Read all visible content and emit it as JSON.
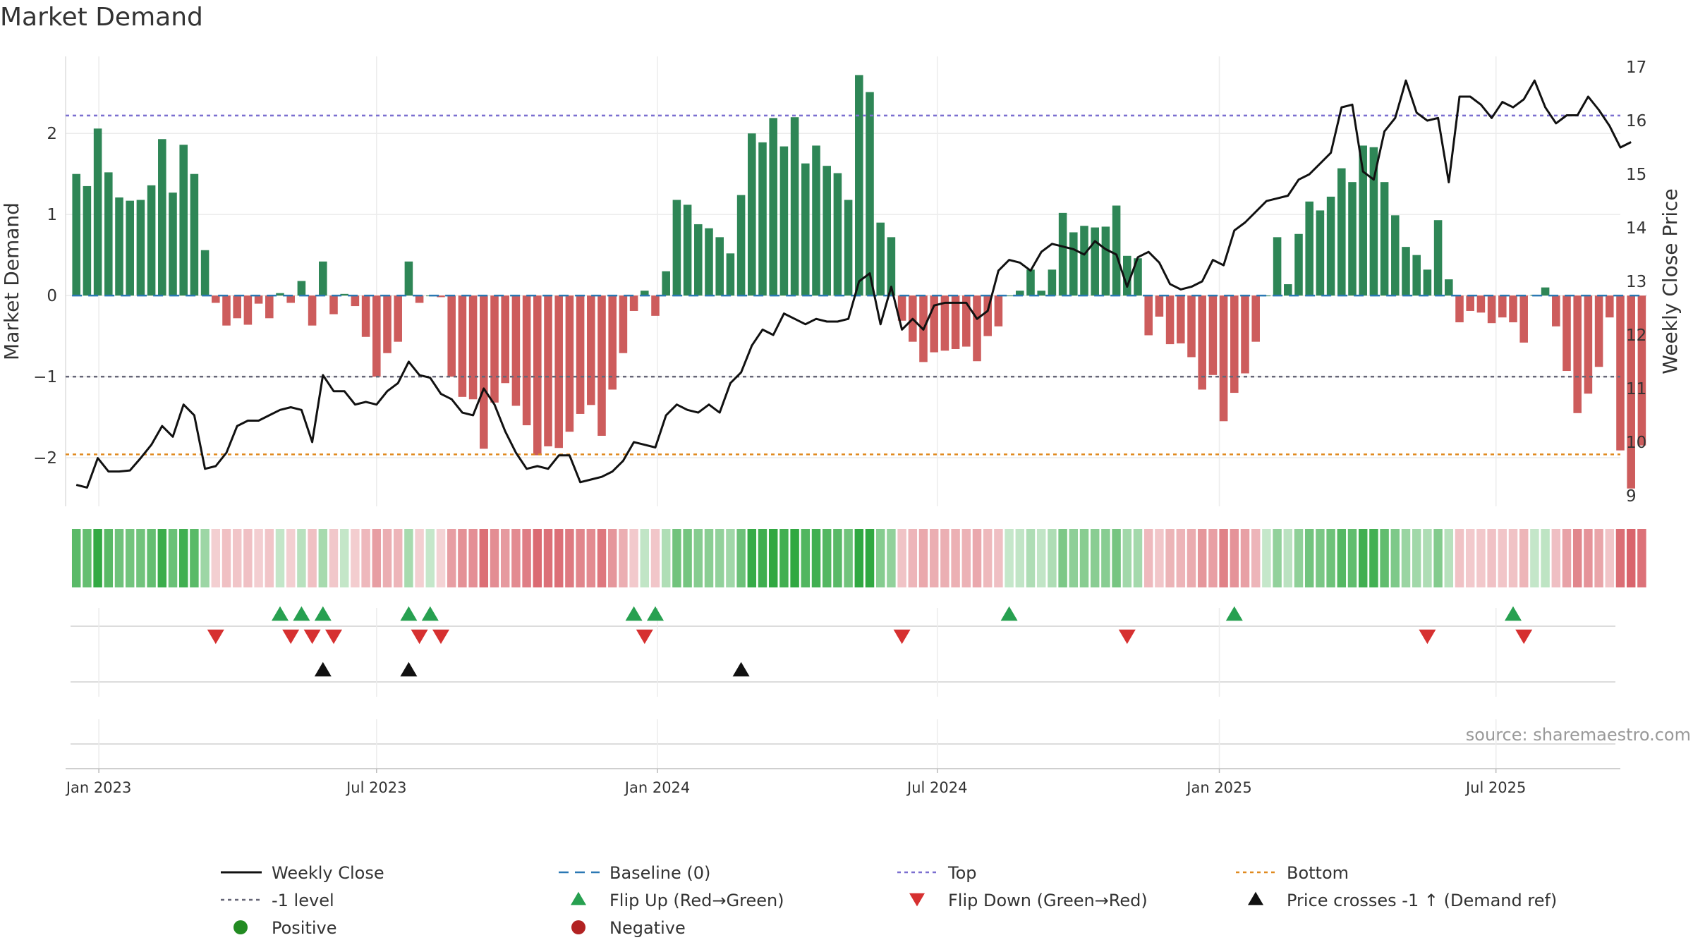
{
  "chart_data": {
    "type": "bar",
    "title": "Market Demand",
    "ylabel": "Market Demand",
    "y2label": "Weekly Close Price",
    "source": "source: sharemaestro.com",
    "ylim": [
      -2.6,
      2.95
    ],
    "y2lim": [
      8.8,
      17.2
    ],
    "yticks": [
      {
        "v": 2,
        "t": "2"
      },
      {
        "v": 1,
        "t": "1"
      },
      {
        "v": 0,
        "t": "0"
      },
      {
        "v": -1,
        "t": "−1"
      },
      {
        "v": -2,
        "t": "−2"
      }
    ],
    "y2ticks": [
      "9",
      "10",
      "11",
      "12",
      "13",
      "14",
      "15",
      "16",
      "17"
    ],
    "xlim": [
      -1,
      144
    ],
    "xticks": [
      {
        "w": 2.1,
        "t": "Jan 2023"
      },
      {
        "w": 28,
        "t": "Jul 2023"
      },
      {
        "w": 54.2,
        "t": "Jan 2024"
      },
      {
        "w": 80.3,
        "t": "Jul 2024"
      },
      {
        "w": 106.6,
        "t": "Jan 2025"
      },
      {
        "w": 132.4,
        "t": "Jul 2025"
      }
    ],
    "reference_lines": [
      {
        "name": "Top",
        "value": 2.22,
        "color": "#7b6fd0"
      },
      {
        "name": "-1 level",
        "value": -1.0,
        "color": "#666677"
      },
      {
        "name": "Bottom",
        "value": -1.96,
        "color": "#e08a20"
      }
    ],
    "series": [
      {
        "name": "Market Demand",
        "type": "bar",
        "positive_color": "#2e8656",
        "negative_color": "#cd5c5c",
        "values": [
          1.5,
          1.35,
          2.06,
          1.52,
          1.21,
          1.17,
          1.18,
          1.36,
          1.93,
          1.27,
          1.86,
          1.5,
          0.56,
          -0.09,
          -0.37,
          -0.28,
          -0.36,
          -0.1,
          -0.28,
          0.03,
          -0.09,
          0.18,
          -0.37,
          0.42,
          -0.23,
          0.02,
          -0.13,
          -0.51,
          -1.0,
          -0.71,
          -0.57,
          0.42,
          -0.09,
          0.0,
          -0.02,
          -1.0,
          -1.25,
          -1.28,
          -1.89,
          -1.32,
          -1.08,
          -1.36,
          -1.6,
          -1.97,
          -1.86,
          -1.88,
          -1.68,
          -1.46,
          -1.35,
          -1.73,
          -1.16,
          -0.71,
          -0.19,
          0.06,
          -0.25,
          0.3,
          1.18,
          1.12,
          0.88,
          0.83,
          0.72,
          0.52,
          1.24,
          2.0,
          1.89,
          2.19,
          1.84,
          2.2,
          1.63,
          1.85,
          1.6,
          1.51,
          1.18,
          2.72,
          2.51,
          0.9,
          0.72,
          -0.31,
          -0.57,
          -0.82,
          -0.7,
          -0.68,
          -0.66,
          -0.63,
          -0.81,
          -0.5,
          -0.38,
          0.0,
          0.06,
          0.32,
          0.06,
          0.32,
          1.02,
          0.78,
          0.86,
          0.84,
          0.85,
          1.11,
          0.49,
          0.46,
          -0.49,
          -0.26,
          -0.6,
          -0.59,
          -0.76,
          -1.16,
          -0.98,
          -1.55,
          -1.2,
          -0.96,
          -0.57,
          0.0,
          0.72,
          0.14,
          0.76,
          1.16,
          1.05,
          1.22,
          1.57,
          1.4,
          1.85,
          1.83,
          1.4,
          0.99,
          0.6,
          0.5,
          0.32,
          0.93,
          0.2,
          -0.33,
          -0.19,
          -0.21,
          -0.34,
          -0.27,
          -0.33,
          -0.58,
          0.01,
          0.1,
          -0.38,
          -0.93,
          -1.45,
          -1.21,
          -0.88,
          -0.27,
          -1.91,
          -2.38,
          -1.85
        ]
      },
      {
        "name": "Weekly Close",
        "type": "line",
        "axis": "right",
        "color": "#111111",
        "values": [
          9.2,
          9.15,
          9.7,
          9.45,
          9.45,
          9.47,
          9.7,
          9.95,
          10.3,
          10.1,
          10.7,
          10.5,
          9.5,
          9.55,
          9.8,
          10.3,
          10.4,
          10.4,
          10.5,
          10.6,
          10.65,
          10.6,
          10.0,
          11.25,
          10.95,
          10.95,
          10.7,
          10.75,
          10.7,
          10.95,
          11.1,
          11.5,
          11.25,
          11.2,
          10.9,
          10.8,
          10.55,
          10.5,
          11.0,
          10.7,
          10.2,
          9.8,
          9.5,
          9.55,
          9.5,
          9.75,
          9.75,
          9.25,
          9.3,
          9.35,
          9.45,
          9.65,
          10.0,
          9.95,
          9.9,
          10.5,
          10.7,
          10.6,
          10.55,
          10.7,
          10.55,
          11.1,
          11.3,
          11.8,
          12.1,
          12.0,
          12.4,
          12.3,
          12.2,
          12.3,
          12.25,
          12.25,
          12.3,
          13.0,
          13.15,
          12.2,
          12.9,
          12.1,
          12.3,
          12.1,
          12.55,
          12.6,
          12.6,
          12.6,
          12.3,
          12.45,
          13.2,
          13.4,
          13.35,
          13.2,
          13.55,
          13.7,
          13.65,
          13.6,
          13.5,
          13.75,
          13.6,
          13.5,
          12.9,
          13.45,
          13.55,
          13.35,
          12.95,
          12.85,
          12.9,
          13.0,
          13.4,
          13.3,
          13.95,
          14.1,
          14.3,
          14.5,
          14.55,
          14.6,
          14.9,
          15.0,
          15.2,
          15.4,
          16.25,
          16.3,
          15.05,
          14.9,
          15.8,
          16.05,
          16.75,
          16.15,
          16.0,
          16.05,
          14.85,
          16.45,
          16.45,
          16.3,
          16.05,
          16.35,
          16.25,
          16.4,
          16.75,
          16.25,
          15.95,
          16.1,
          16.1,
          16.45,
          16.2,
          15.9,
          15.5,
          15.6
        ]
      }
    ],
    "strip_panels": {
      "flip_up_weeks": [
        19,
        21,
        23,
        31,
        33,
        52,
        54,
        87,
        108,
        134
      ],
      "flip_down_weeks": [
        13,
        20,
        22,
        24,
        32,
        34,
        53,
        77,
        98,
        126,
        135
      ],
      "price_cross_weeks": [
        23,
        31,
        62
      ]
    },
    "legend": {
      "placement": "bottom",
      "items": [
        {
          "label": "Weekly Close",
          "symbol": "solid-line",
          "color": "#111111"
        },
        {
          "label": "Baseline (0)",
          "symbol": "dashed-line",
          "color": "#2a78b4"
        },
        {
          "label": "Top",
          "symbol": "dotted-line",
          "color": "#7b6fd0"
        },
        {
          "label": "Bottom",
          "symbol": "dotted-line",
          "color": "#e08a20"
        },
        {
          "label": "-1 level",
          "symbol": "dotted-line",
          "color": "#666677"
        },
        {
          "label": "Flip Up (Red→Green)",
          "symbol": "triangle-up",
          "color": "#27a050"
        },
        {
          "label": "Flip Down (Green→Red)",
          "symbol": "triangle-down",
          "color": "#d63030"
        },
        {
          "label": "Price crosses -1 ↑ (Demand ref)",
          "symbol": "triangle-up",
          "color": "#111111"
        },
        {
          "label": "Positive",
          "symbol": "circle",
          "color": "#228b22"
        },
        {
          "label": "Negative",
          "symbol": "circle",
          "color": "#b22222"
        }
      ]
    }
  }
}
